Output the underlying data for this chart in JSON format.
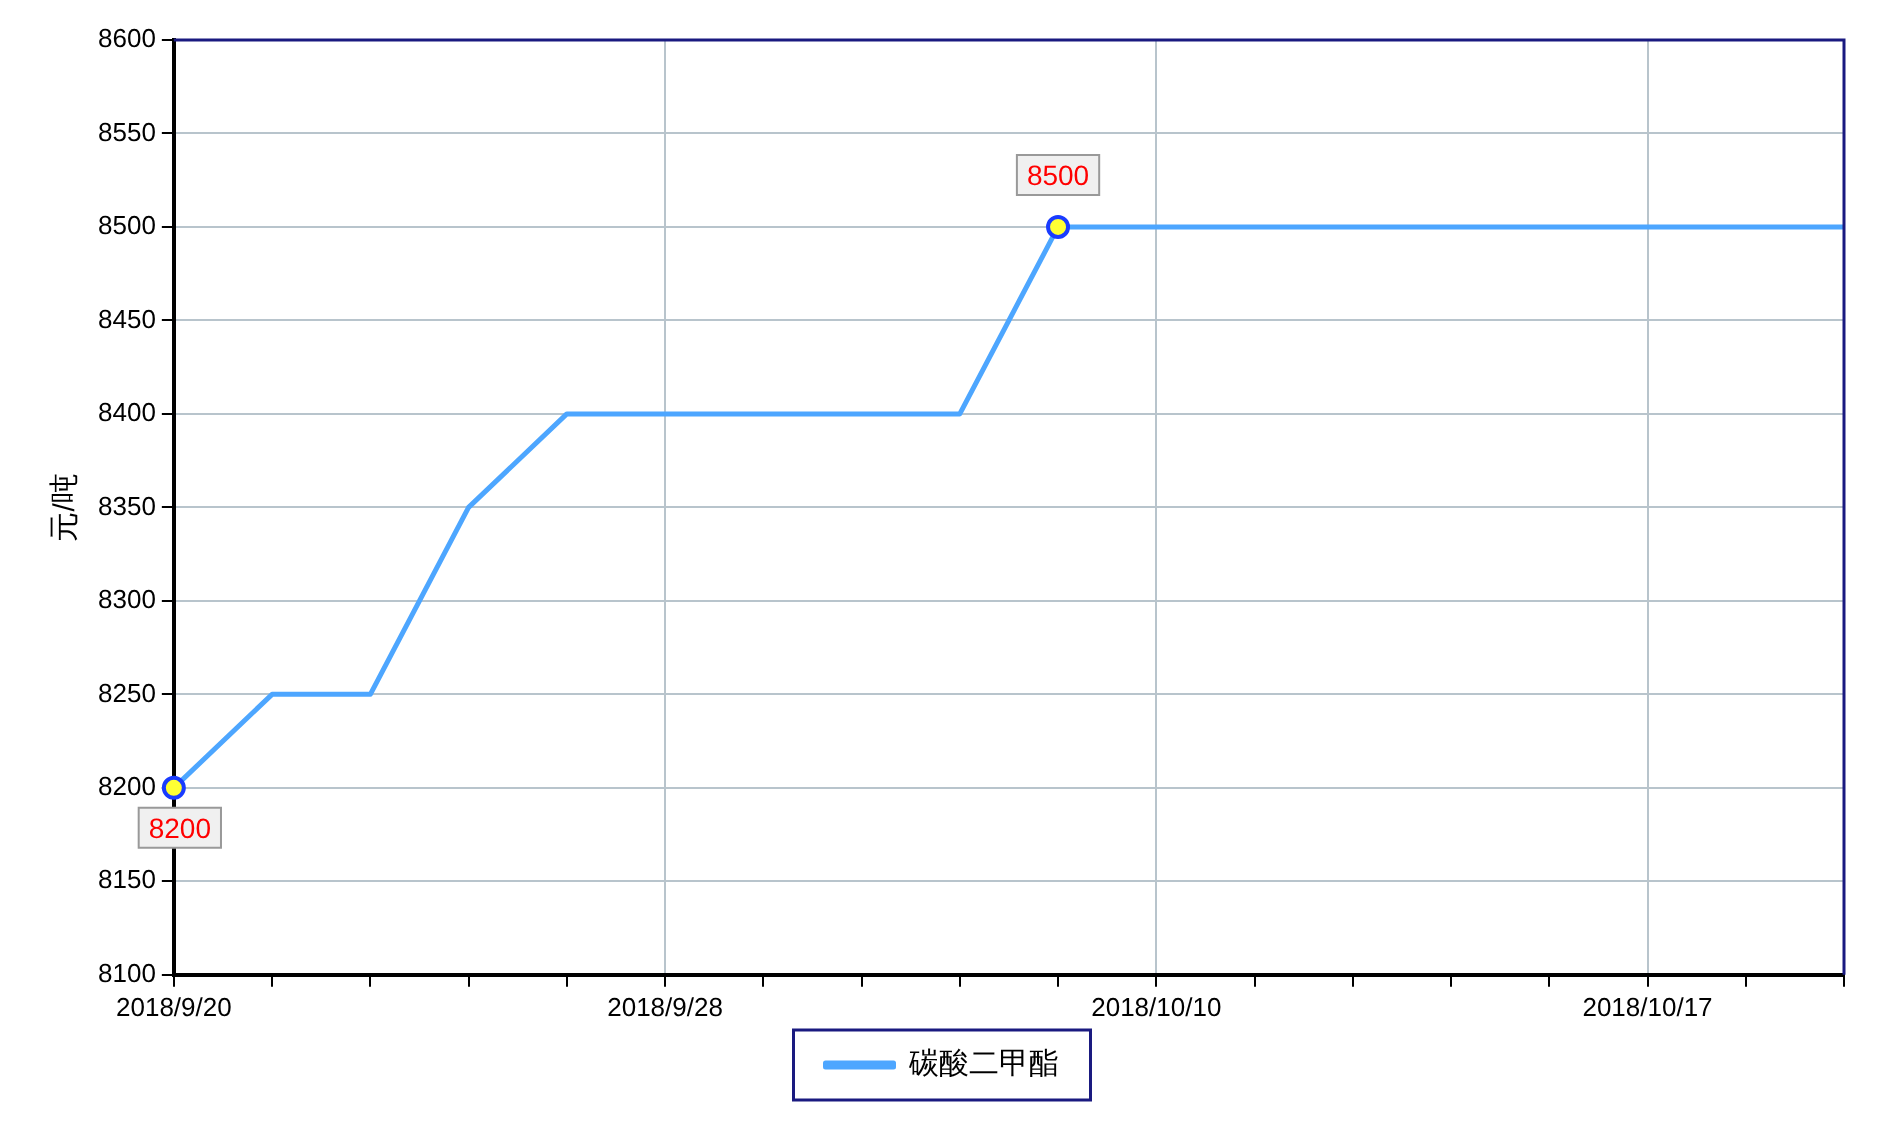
{
  "chart_data": {
    "type": "line",
    "ylabel": "元/吨",
    "categories": [
      "2018/9/20",
      null,
      null,
      null,
      null,
      "2018/9/28",
      null,
      null,
      null,
      null,
      "2018/10/10",
      null,
      null,
      null,
      null,
      "2018/10/17",
      null,
      null
    ],
    "series": [
      {
        "name": "碳酸二甲酯",
        "color": "#4da6ff",
        "values": [
          8200,
          8250,
          8250,
          8350,
          8400,
          8400,
          8400,
          8400,
          8400,
          8500,
          8500,
          8500,
          8500,
          8500,
          8500,
          8500,
          8500,
          8500
        ],
        "value_labels": [
          "8200",
          null,
          null,
          null,
          null,
          null,
          null,
          null,
          null,
          "8500",
          null,
          null,
          null,
          null,
          null,
          null,
          null,
          null
        ]
      }
    ],
    "ylim": [
      8100,
      8600
    ],
    "yticks": [
      8100,
      8150,
      8200,
      8250,
      8300,
      8350,
      8400,
      8450,
      8500,
      8550,
      8600
    ],
    "grid": true,
    "legend": "bottom"
  }
}
